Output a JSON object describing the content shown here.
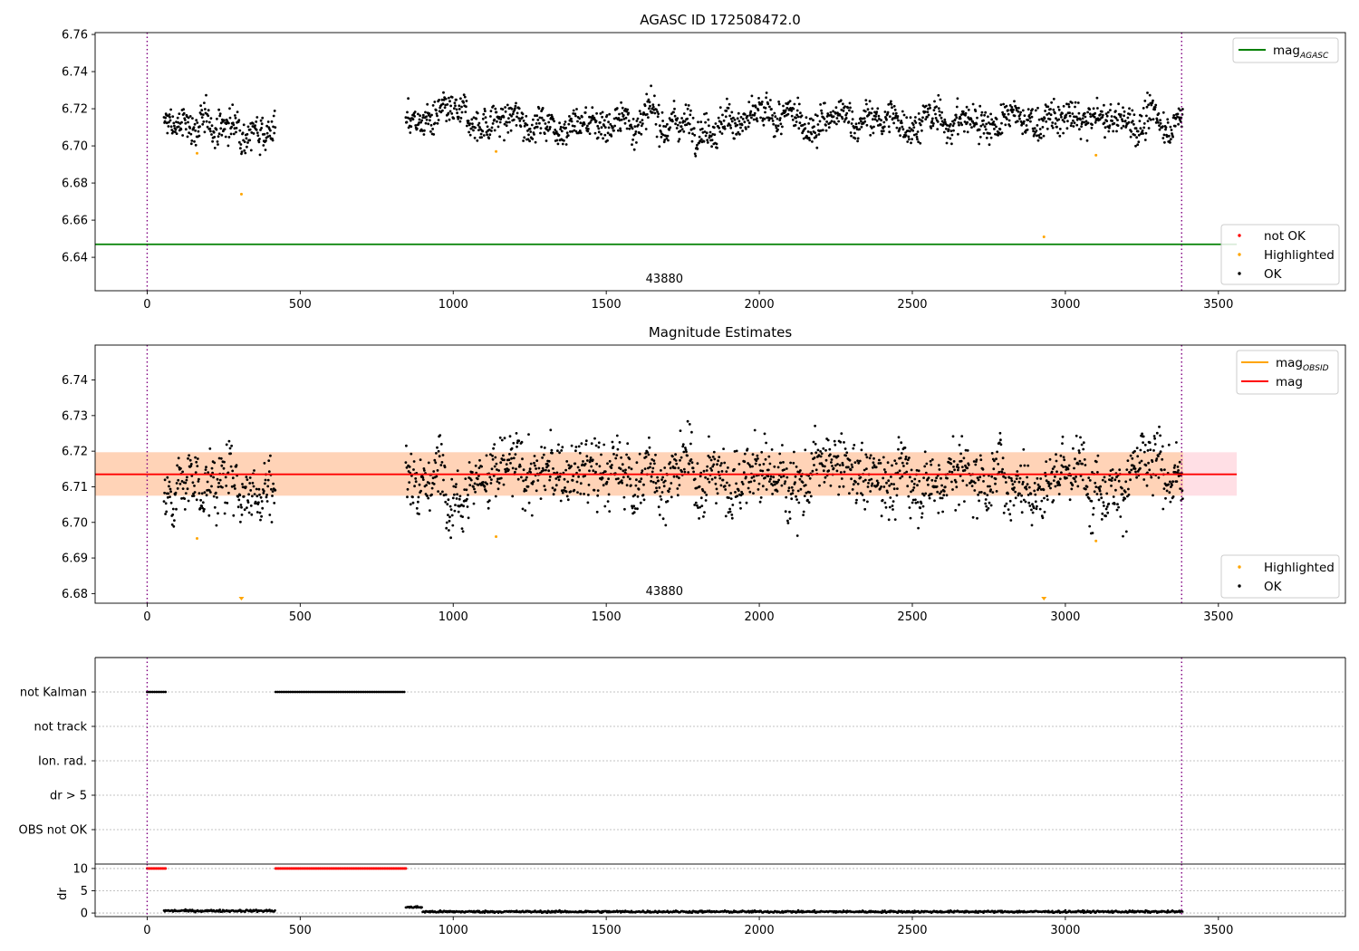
{
  "chart_data": [
    {
      "type": "scatter",
      "title": "AGASC ID 172508472.0",
      "xlim": [
        -170,
        3915
      ],
      "ylim": [
        6.622,
        6.761
      ],
      "xticks": [
        0,
        500,
        1000,
        1500,
        2000,
        2500,
        3000,
        3500
      ],
      "yticks": [
        6.64,
        6.66,
        6.68,
        6.7,
        6.72,
        6.74,
        6.76
      ],
      "ytick_labels": [
        "6.64",
        "6.66",
        "6.68",
        "6.70",
        "6.72",
        "6.74",
        "6.76"
      ],
      "annotation": "43880",
      "vlines": [
        0,
        3380
      ],
      "hlines": [
        {
          "name": "mag_AGASC",
          "value": 6.647,
          "color": "#008000",
          "x_range": [
            -170,
            3560
          ]
        }
      ],
      "legend_top": [
        {
          "label": "mag",
          "sub": "AGASC",
          "kind": "line",
          "color": "#008000"
        }
      ],
      "legend_bottom": [
        {
          "label": "not OK",
          "kind": "dot",
          "color": "#ff0000"
        },
        {
          "label": "Highlighted",
          "kind": "dot",
          "color": "#ffa500"
        },
        {
          "label": "OK",
          "kind": "dot",
          "color": "#000000"
        }
      ],
      "series": [
        {
          "name": "OK",
          "color": "#000000",
          "segments": [
            {
              "x0": 55,
              "x1": 420,
              "center": 6.711,
              "spread": 0.007
            },
            {
              "x0": 845,
              "x1": 3385,
              "center": 6.7135,
              "spread": 0.007
            }
          ]
        },
        {
          "name": "Highlighted",
          "color": "#ffa500",
          "points": [
            [
              163,
              6.696
            ],
            [
              308,
              6.674
            ],
            [
              1140,
              6.697
            ],
            [
              2930,
              6.651
            ],
            [
              3100,
              6.695
            ]
          ]
        }
      ]
    },
    {
      "type": "scatter",
      "title": "Magnitude Estimates",
      "xlim": [
        -170,
        3915
      ],
      "ylim": [
        6.6773,
        6.7498
      ],
      "xticks": [
        0,
        500,
        1000,
        1500,
        2000,
        2500,
        3000,
        3500
      ],
      "yticks": [
        6.68,
        6.69,
        6.7,
        6.71,
        6.72,
        6.73,
        6.74
      ],
      "ytick_labels": [
        "6.68",
        "6.69",
        "6.70",
        "6.71",
        "6.72",
        "6.73",
        "6.74"
      ],
      "annotation": "43880",
      "vlines": [
        0,
        3380
      ],
      "hlines": [
        {
          "name": "mag",
          "value": 6.7135,
          "color": "#ff0000",
          "x_range": [
            -170,
            3560
          ]
        }
      ],
      "bands": [
        {
          "name": "mag_band",
          "y": [
            6.7075,
            6.7197
          ],
          "x_range": [
            -170,
            3560
          ],
          "color": "#ffc0cb",
          "opacity": 0.5
        },
        {
          "name": "mag_obsid_band",
          "y": [
            6.7075,
            6.7197
          ],
          "x_range": [
            -170,
            3385
          ],
          "color": "#ffa500",
          "opacity": 0.2
        }
      ],
      "legend_top": [
        {
          "label": "mag",
          "sub": "OBSID",
          "kind": "line",
          "color": "#ffa500"
        },
        {
          "label": "mag",
          "sub": "",
          "kind": "line",
          "color": "#ff0000"
        }
      ],
      "legend_bottom": [
        {
          "label": "Highlighted",
          "kind": "dot",
          "color": "#ffa500"
        },
        {
          "label": "OK",
          "kind": "dot",
          "color": "#000000"
        }
      ],
      "series": [
        {
          "name": "OK",
          "color": "#000000",
          "segments": [
            {
              "x0": 55,
              "x1": 420,
              "center": 6.711,
              "spread": 0.007
            },
            {
              "x0": 845,
              "x1": 3385,
              "center": 6.7135,
              "spread": 0.007
            }
          ]
        },
        {
          "name": "Highlighted",
          "color": "#ffa500",
          "points": [
            [
              163,
              6.6955
            ],
            [
              1140,
              6.696
            ],
            [
              3100,
              6.6948
            ]
          ],
          "markers_below": [
            308,
            2930
          ]
        }
      ]
    },
    {
      "type": "scatter",
      "title": "",
      "xlim": [
        -170,
        3915
      ],
      "categories": [
        "not Kalman",
        "not track",
        "Ion. rad.",
        "dr > 5",
        "OBS not OK"
      ],
      "vlines": [
        0,
        3380
      ],
      "series": [
        {
          "name": "not Kalman",
          "color": "#000000",
          "segments": [
            [
              0,
              60
            ],
            [
              420,
              845
            ]
          ]
        }
      ]
    },
    {
      "type": "scatter",
      "title": "",
      "xlim": [
        -170,
        3915
      ],
      "ylim": [
        -0.8,
        11
      ],
      "ylabel": "dr",
      "xticks": [
        0,
        500,
        1000,
        1500,
        2000,
        2500,
        3000,
        3500
      ],
      "yticks": [
        0,
        5,
        10
      ],
      "ytick_labels": [
        "0",
        "5",
        "10"
      ],
      "vlines": [
        0,
        3380
      ],
      "series": [
        {
          "name": "dr (clipped)",
          "color": "#ff0000",
          "value": 10,
          "segments": [
            [
              0,
              60
            ],
            [
              420,
              845
            ]
          ]
        },
        {
          "name": "dr",
          "color": "#000000",
          "segments": [
            {
              "x0": 55,
              "x1": 420,
              "center": 0.5
            },
            {
              "x0": 845,
              "x1": 900,
              "center": 1.3
            },
            {
              "x0": 900,
              "x1": 3385,
              "center": 0.3
            }
          ]
        }
      ]
    }
  ]
}
